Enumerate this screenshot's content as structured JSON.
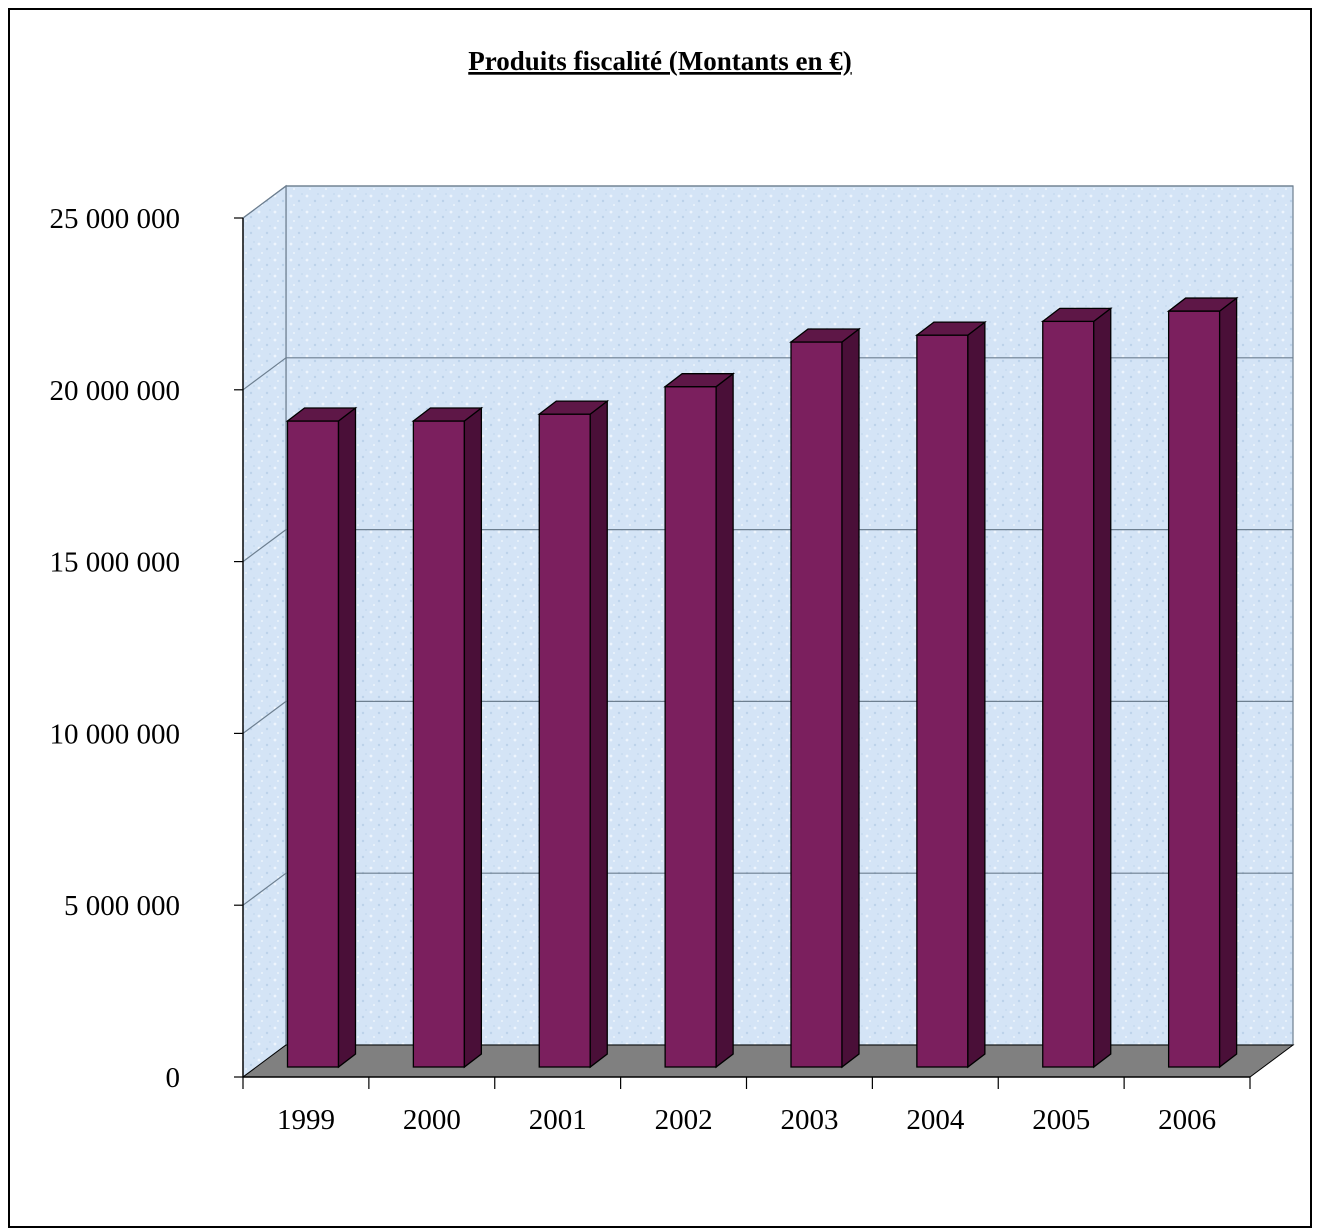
{
  "chart_data": {
    "type": "bar",
    "title": "Produits fiscalité (Montants en €)",
    "xlabel": "",
    "ylabel": "",
    "categories": [
      "1999",
      "2000",
      "2001",
      "2002",
      "2003",
      "2004",
      "2005",
      "2006"
    ],
    "values": [
      18800000,
      18800000,
      19000000,
      19800000,
      21100000,
      21300000,
      21700000,
      22000000
    ],
    "ylim": [
      0,
      25000000
    ],
    "ytick_values": [
      0,
      5000000,
      10000000,
      15000000,
      20000000,
      25000000
    ],
    "ytick_labels": [
      "0",
      "5 000 000",
      "10 000 000",
      "15 000 000",
      "20 000 000",
      "25 000 000"
    ],
    "grid": true,
    "legend": "none",
    "style": "3d-column",
    "colors": {
      "bar_front": "#7b1f5e",
      "bar_side": "#4a0f38",
      "bar_top": "#5e1747",
      "wall": "#d2e3f5",
      "floor": "#808080",
      "gridline": "#6d7f90"
    }
  }
}
